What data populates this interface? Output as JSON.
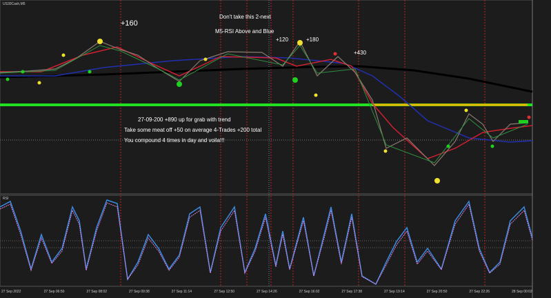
{
  "window": {
    "symbol": "US30Cash,M5",
    "indicator": "RSI"
  },
  "annotations": {
    "top_note_1": "Don't take this 2-next",
    "top_note_2": "M5-RSI Above and Blue",
    "gain_1": "+160",
    "gain_2": "+120",
    "gain_3": "+180",
    "gain_4": "+430",
    "summary_1": "27-09-200 +890 up for grab with trend",
    "summary_2": "Take some meat off +50 on average 4-Trades +200 total",
    "summary_3": "You compound 4 times in day and voila!!!"
  },
  "time_axis": [
    "27 Sep 2022",
    "27 Sep 06:50",
    "27 Sep 08:02",
    "27 Sep 09:38",
    "27 Sep 11:14",
    "27 Sep 12:50",
    "27 Sep 14:26",
    "27 Sep 16:02",
    "27 Sep 17:38",
    "27 Sep 19:14",
    "27 Sep 20:50",
    "27 Sep 22:26",
    "28 Sep 00:02"
  ]
}
